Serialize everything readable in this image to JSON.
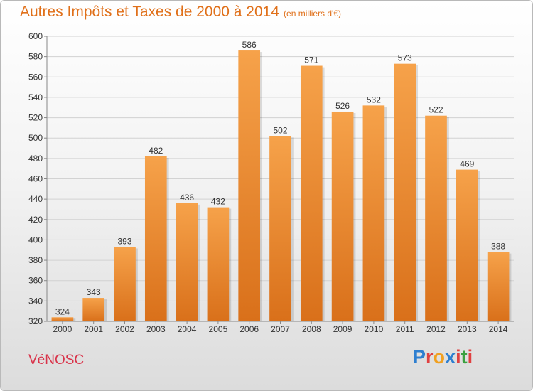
{
  "title": "Autres Impôts et Taxes de 2000 à 2014",
  "subtitle": "(en milliers d'€)",
  "commune": "VéNOSC",
  "logo_text": "Proxiti",
  "colors": {
    "bar_light": "#f6a24a",
    "bar_dark": "#d9701a",
    "title": "#e0701a",
    "commune": "#d9334a",
    "logo": [
      "#2e7fd0",
      "#e04040",
      "#f0a020",
      "#2e7fd0",
      "#e04040",
      "#3aa040",
      "#e04040"
    ]
  },
  "chart_data": {
    "type": "bar",
    "title": "Autres Impôts et Taxes de 2000 à 2014",
    "subtitle": "(en milliers d'€)",
    "categories": [
      "2000",
      "2001",
      "2002",
      "2003",
      "2004",
      "2005",
      "2006",
      "2007",
      "2008",
      "2009",
      "2010",
      "2011",
      "2012",
      "2013",
      "2014"
    ],
    "values": [
      324,
      343,
      393,
      482,
      436,
      432,
      586,
      502,
      571,
      526,
      532,
      573,
      522,
      469,
      388
    ],
    "ylim": [
      320,
      600
    ],
    "yticks": [
      320,
      340,
      360,
      380,
      400,
      420,
      440,
      460,
      480,
      500,
      520,
      540,
      560,
      580,
      600
    ],
    "grid": true,
    "legend": "none"
  }
}
